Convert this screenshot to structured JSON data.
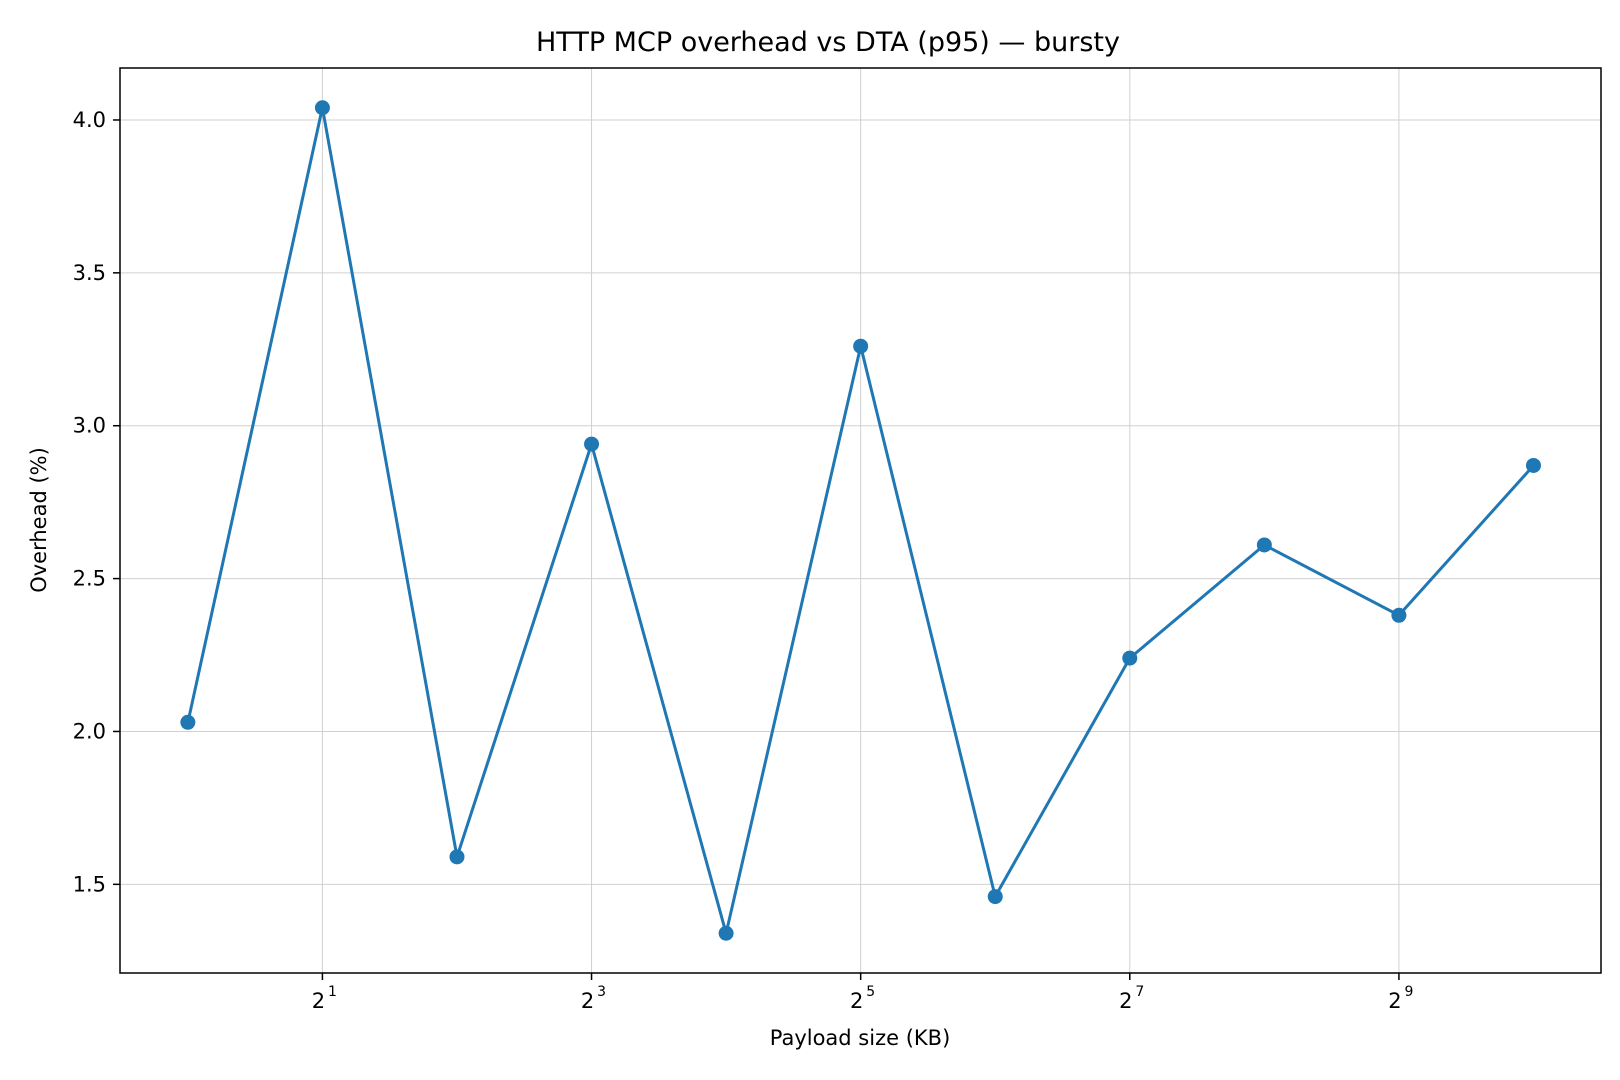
{
  "chart_data": {
    "type": "line",
    "title": "HTTP MCP overhead vs DTA (p95) — bursty",
    "xlabel": "Payload size (KB)",
    "ylabel": "Overhead (%)",
    "x_scale": "log2",
    "grid": true,
    "xlim": [
      0.705,
      1450
    ],
    "ylim": [
      1.21,
      4.17
    ],
    "x_ticks": [
      {
        "base": "2",
        "exp": "1",
        "value": 2
      },
      {
        "base": "2",
        "exp": "3",
        "value": 8
      },
      {
        "base": "2",
        "exp": "5",
        "value": 32
      },
      {
        "base": "2",
        "exp": "7",
        "value": 128
      },
      {
        "base": "2",
        "exp": "9",
        "value": 512
      }
    ],
    "y_ticks": [
      {
        "label": "1.5",
        "value": 1.5
      },
      {
        "label": "2.0",
        "value": 2.0
      },
      {
        "label": "2.5",
        "value": 2.5
      },
      {
        "label": "3.0",
        "value": 3.0
      },
      {
        "label": "3.5",
        "value": 3.5
      },
      {
        "label": "4.0",
        "value": 4.0
      }
    ],
    "series": [
      {
        "color": "#1f77b4",
        "x": [
          1,
          2,
          4,
          8,
          16,
          32,
          64,
          128,
          256,
          512,
          1024
        ],
        "y": [
          2.03,
          4.04,
          1.59,
          2.94,
          1.34,
          3.26,
          1.46,
          2.24,
          2.61,
          2.38,
          2.87
        ]
      }
    ]
  }
}
